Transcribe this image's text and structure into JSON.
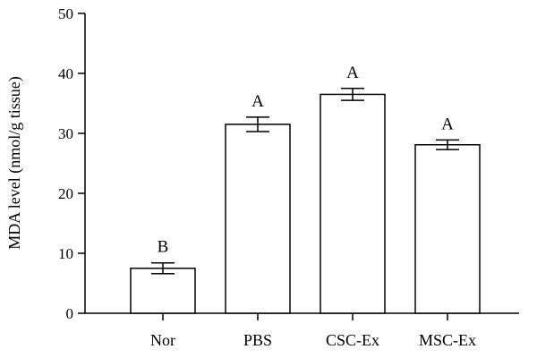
{
  "chart_data": {
    "type": "bar",
    "title": "",
    "xlabel": "",
    "ylabel": "MDA level (nmol/g tissue)",
    "ylim": [
      0,
      50
    ],
    "yticks": [
      0,
      10,
      20,
      30,
      40,
      50
    ],
    "grid": false,
    "categories": [
      "Nor",
      "PBS",
      "CSC-Ex",
      "MSC-Ex"
    ],
    "values": [
      7.5,
      31.5,
      36.5,
      28.1
    ],
    "errors": [
      0.9,
      1.2,
      1.0,
      0.8
    ],
    "significance": [
      "B",
      "A",
      "A",
      "A"
    ],
    "bar_fill": "#ffffff",
    "bar_stroke": "#000000"
  }
}
